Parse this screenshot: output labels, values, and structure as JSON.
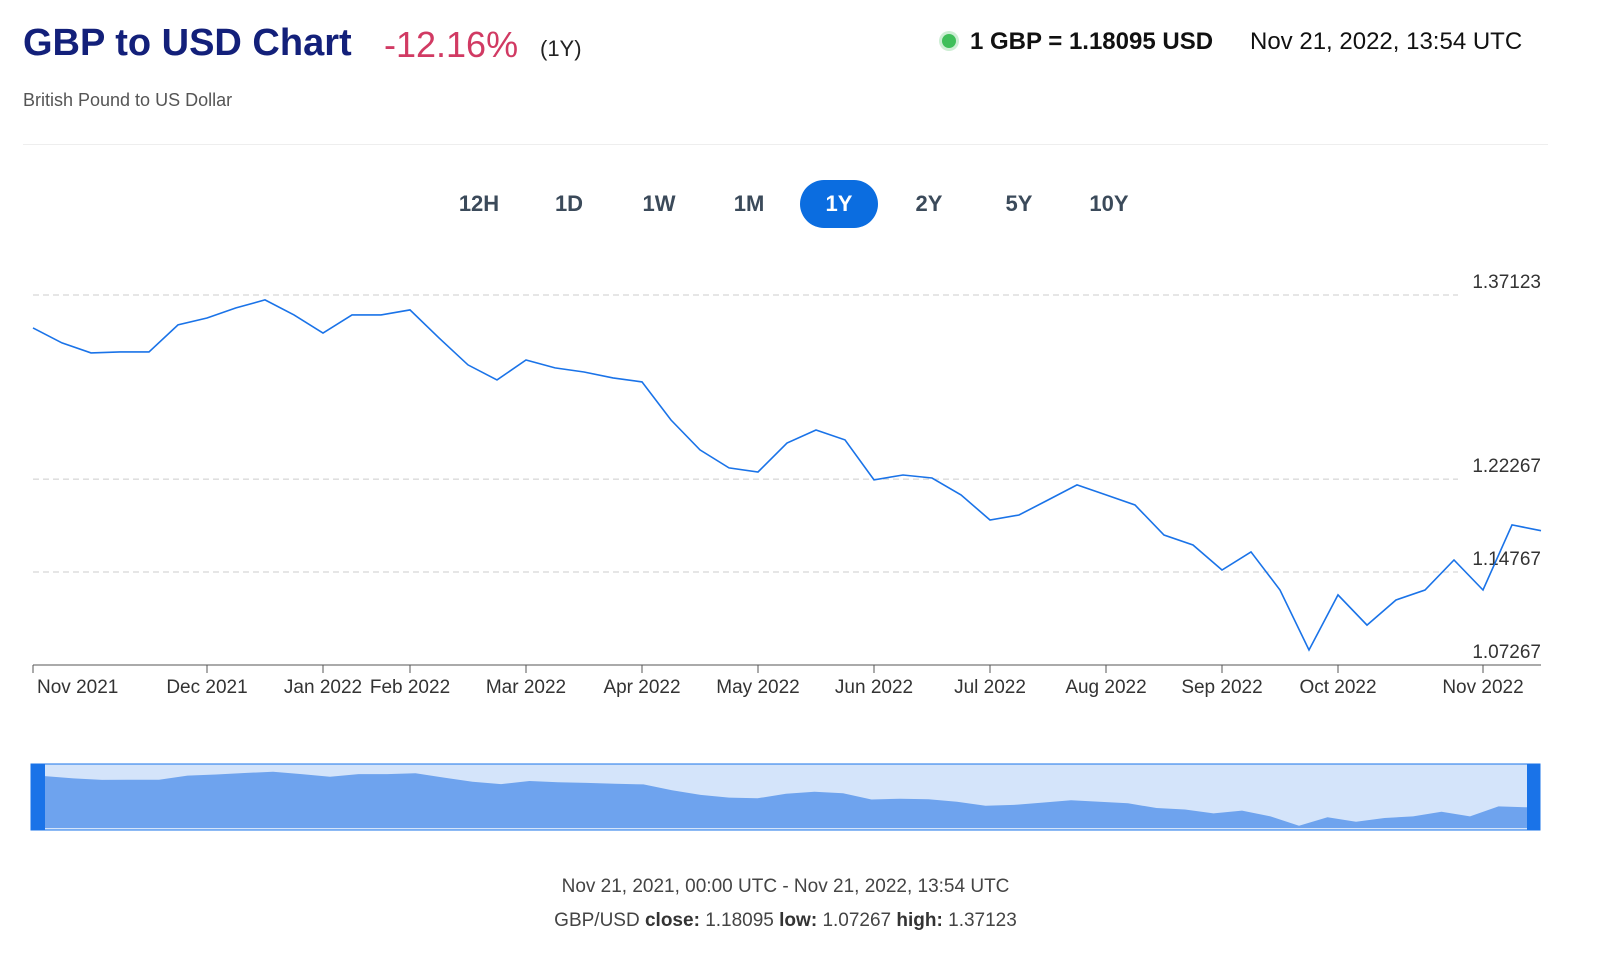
{
  "header": {
    "title": "GBP to USD Chart",
    "change": "-12.16%",
    "period": "(1Y)",
    "subtitle": "British Pound to US Dollar",
    "rate": "1 GBP = 1.18095 USD",
    "timestamp": "Nov 21, 2022, 13:54 UTC"
  },
  "ranges": {
    "buttons": [
      "12H",
      "1D",
      "1W",
      "1M",
      "1Y",
      "2Y",
      "5Y",
      "10Y"
    ],
    "active": 4
  },
  "chart_data": {
    "type": "line",
    "categories": [
      "Nov 2021",
      null,
      null,
      null,
      null,
      null,
      "Dec 2021",
      null,
      null,
      null,
      "Jan 2022",
      null,
      null,
      "Feb 2022",
      null,
      null,
      null,
      "Mar 2022",
      null,
      null,
      null,
      "Apr 2022",
      null,
      null,
      null,
      "May 2022",
      null,
      null,
      null,
      "Jun 2022",
      null,
      null,
      null,
      "Jul 2022",
      null,
      null,
      null,
      "Aug 2022",
      null,
      null,
      null,
      "Sep 2022",
      null,
      null,
      null,
      "Oct 2022",
      null,
      null,
      null,
      null,
      "Nov 2022",
      null,
      null
    ],
    "series": [
      {
        "name": "GBP/USD",
        "color": "#1a73e8",
        "values": [
          1.3447,
          1.3326,
          1.3245,
          1.3253,
          1.3253,
          1.3471,
          1.3527,
          1.3608,
          1.3673,
          1.3552,
          1.3406,
          1.3552,
          1.3552,
          1.3592,
          1.3366,
          1.3148,
          1.3027,
          1.3188,
          1.3124,
          1.3091,
          1.3043,
          1.3011,
          1.2704,
          1.2462,
          1.2317,
          1.2284,
          1.2518,
          1.2623,
          1.2543,
          1.222,
          1.226,
          1.2236,
          1.2099,
          1.1897,
          1.1937,
          1.2058,
          1.218,
          1.2099,
          1.2018,
          1.1776,
          1.1695,
          1.1493,
          1.1639,
          1.1332,
          1.0848,
          1.1292,
          1.1049,
          1.1251,
          1.1332,
          1.1574,
          1.1332,
          1.1857,
          1.181
        ]
      }
    ],
    "ylim": [
      1.07267,
      1.37123
    ],
    "yticks": [
      1.07267,
      1.14767,
      1.22267,
      1.37123
    ],
    "grid": true
  },
  "footer": {
    "range": "Nov 21, 2021, 00:00 UTC - Nov 21, 2022, 13:54 UTC",
    "pair": "GBP/USD",
    "close_label": "close:",
    "close": "1.18095",
    "low_label": "low:",
    "low": "1.07267",
    "high_label": "high:",
    "high": "1.37123"
  }
}
